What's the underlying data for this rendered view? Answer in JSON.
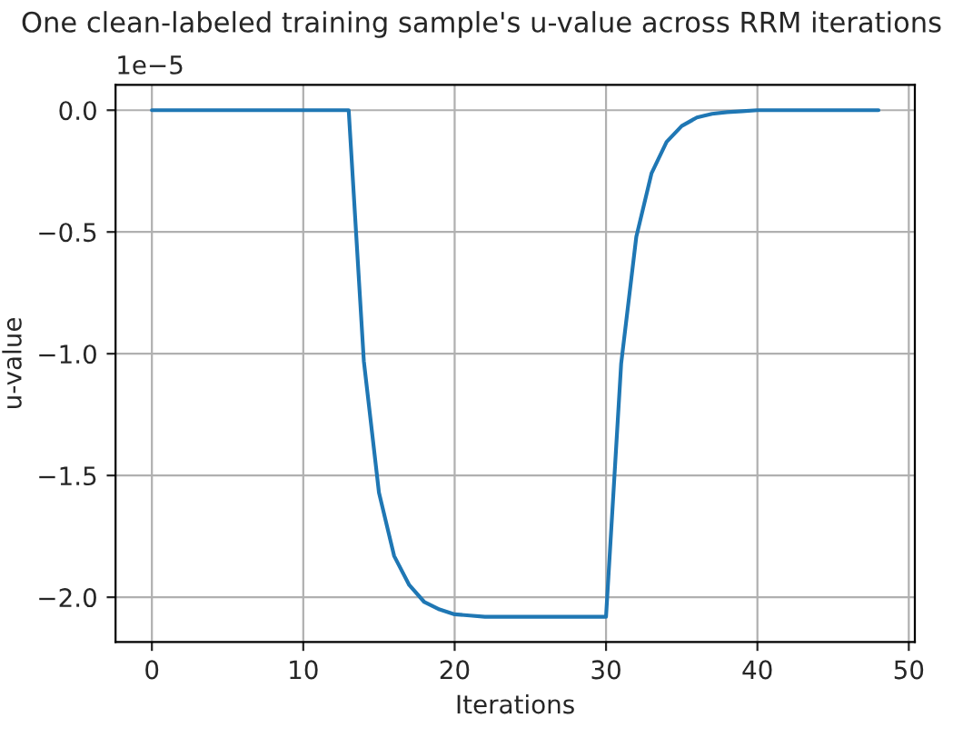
{
  "chart_data": {
    "type": "line",
    "title": "One clean-labeled training sample's u-value across RRM iterations",
    "xlabel": "Iterations",
    "ylabel": "u-value",
    "x": [
      0,
      1,
      2,
      3,
      4,
      5,
      6,
      7,
      8,
      9,
      10,
      11,
      12,
      13,
      14,
      15,
      16,
      17,
      18,
      19,
      20,
      21,
      22,
      23,
      24,
      25,
      26,
      27,
      28,
      29,
      30,
      31,
      32,
      33,
      34,
      35,
      36,
      37,
      38,
      39,
      40,
      41,
      42,
      43,
      44,
      45,
      46,
      47,
      48
    ],
    "series": [
      {
        "color": "#1f77b4",
        "values": [
          0,
          0,
          0,
          0,
          0,
          0,
          0,
          0,
          0,
          0,
          0,
          0,
          0,
          0,
          -1.03,
          -1.57,
          -1.83,
          -1.95,
          -2.02,
          -2.05,
          -2.07,
          -2.075,
          -2.08,
          -2.08,
          -2.08,
          -2.08,
          -2.08,
          -2.08,
          -2.08,
          -2.08,
          -2.08,
          -1.04,
          -0.52,
          -0.26,
          -0.13,
          -0.065,
          -0.03,
          -0.015,
          -0.008,
          -0.004,
          0,
          0,
          0,
          0,
          0,
          0,
          0,
          0,
          0
        ]
      }
    ],
    "xlim": [
      -2.4,
      50.4
    ],
    "ylim": [
      -2.184,
      0.104
    ],
    "xticks": [
      0,
      10,
      20,
      30,
      40,
      50
    ],
    "yticks": [
      {
        "value": 0.0,
        "label": "0.0"
      },
      {
        "value": -0.5,
        "label": "−0.5"
      },
      {
        "value": -1.0,
        "label": "−1.0"
      },
      {
        "value": -1.5,
        "label": "−1.5"
      },
      {
        "value": -2.0,
        "label": "−2.0"
      }
    ],
    "annotations": [
      "1e−5"
    ],
    "grid": true,
    "marker": "none",
    "line_style": "solid"
  }
}
